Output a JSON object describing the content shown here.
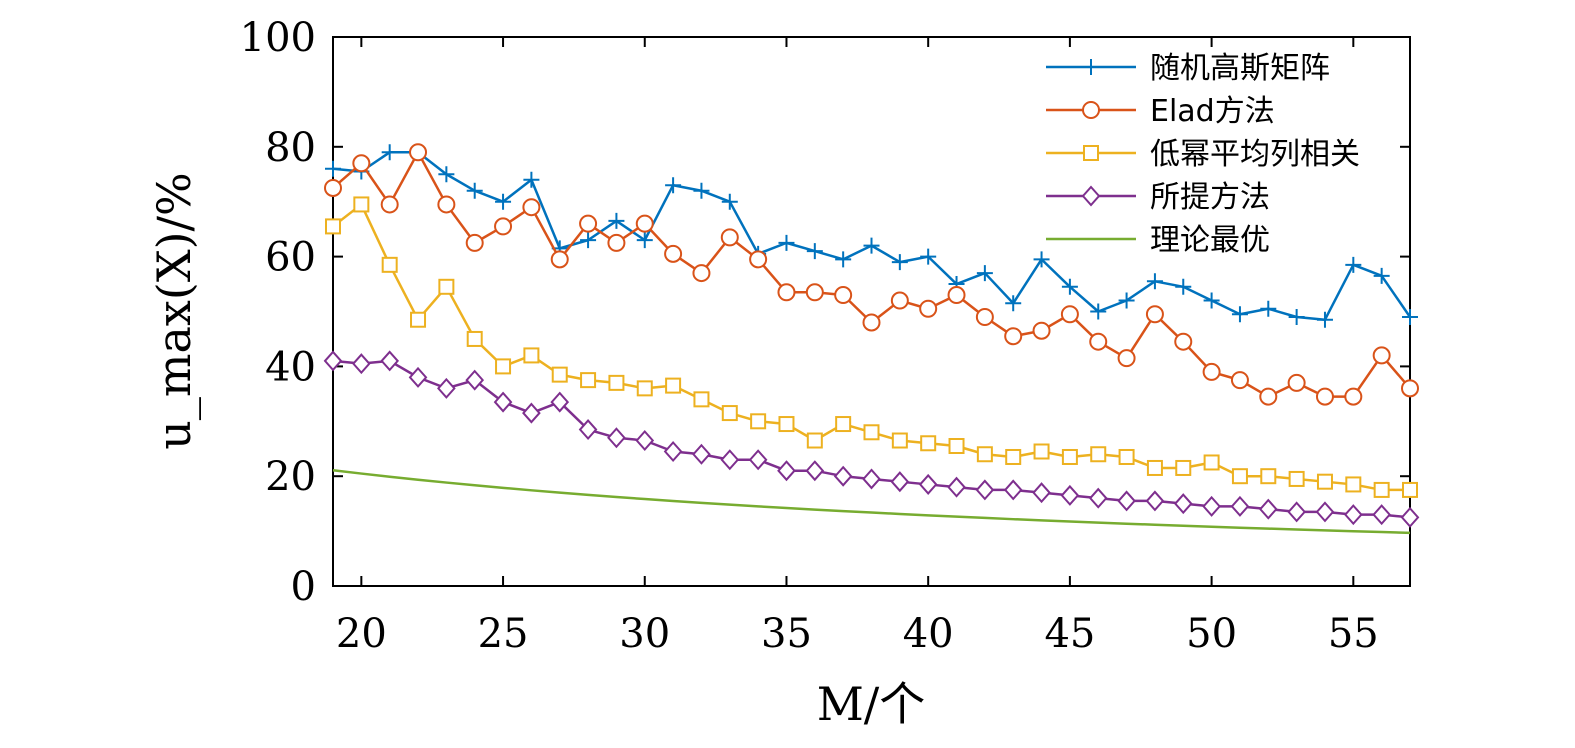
{
  "chart_data": {
    "type": "line",
    "xlabel": "M/个",
    "ylabel": "u_max(X)/%",
    "xlim": [
      19,
      57
    ],
    "ylim": [
      0,
      100
    ],
    "xticks": [
      20,
      25,
      30,
      35,
      40,
      45,
      50,
      55
    ],
    "yticks": [
      0,
      20,
      40,
      60,
      80,
      100
    ],
    "grid": false,
    "legend_position": "top-right",
    "x": [
      19,
      20,
      21,
      22,
      23,
      24,
      25,
      26,
      27,
      28,
      29,
      30,
      31,
      32,
      33,
      34,
      35,
      36,
      37,
      38,
      39,
      40,
      41,
      42,
      43,
      44,
      45,
      46,
      47,
      48,
      49,
      50,
      51,
      52,
      53,
      54,
      55,
      56,
      57
    ],
    "series": [
      {
        "name": "随机高斯矩阵",
        "color": "#0072BD",
        "marker": "plus",
        "values": [
          76,
          75.5,
          79,
          79,
          75,
          72,
          70,
          74,
          61.5,
          63,
          66.5,
          63,
          73,
          72,
          70,
          60.5,
          62.5,
          61,
          59.5,
          62,
          59,
          60,
          55,
          57,
          51.5,
          59.5,
          54.5,
          50,
          52,
          55.5,
          54.5,
          52,
          49.5,
          50.5,
          49,
          48.5,
          58.5,
          56.5,
          49
        ]
      },
      {
        "name": "Elad方法",
        "color": "#D95319",
        "marker": "circle",
        "values": [
          72.5,
          77,
          69.5,
          79,
          69.5,
          62.5,
          65.5,
          69,
          59.5,
          66,
          62.5,
          66,
          60.5,
          57,
          63.5,
          59.5,
          53.5,
          53.5,
          53,
          48,
          52,
          50.5,
          53,
          49,
          45.5,
          46.5,
          49.5,
          44.5,
          41.5,
          49.5,
          44.5,
          39,
          37.5,
          34.5,
          37,
          34.5,
          34.5,
          42,
          36
        ]
      },
      {
        "name": "低幂平均列相关",
        "color": "#EDB120",
        "marker": "square",
        "values": [
          65.5,
          69.5,
          58.5,
          48.5,
          54.5,
          45,
          40,
          42,
          38.5,
          37.5,
          37,
          36,
          36.5,
          34,
          31.5,
          30,
          29.5,
          26.5,
          29.5,
          28,
          26.5,
          26,
          25.5,
          24,
          23.5,
          24.5,
          23.5,
          24,
          23.5,
          21.5,
          21.5,
          22.5,
          20,
          20,
          19.5,
          19,
          18.5,
          17.5,
          17.5
        ]
      },
      {
        "name": "所提方法",
        "color": "#7E2F8E",
        "marker": "diamond",
        "values": [
          41,
          40.5,
          41,
          38,
          36,
          37.5,
          33.5,
          31.5,
          33.5,
          28.5,
          27,
          26.5,
          24.5,
          24,
          23,
          23,
          21,
          21,
          20,
          19.5,
          19,
          18.5,
          18,
          17.5,
          17.5,
          17,
          16.5,
          16,
          15.5,
          15.5,
          15,
          14.5,
          14.5,
          14,
          13.5,
          13.5,
          13,
          13,
          12.5
        ]
      },
      {
        "name": "理论最优",
        "color": "#77AC30",
        "marker": "none",
        "values": [
          21.09,
          20.48,
          19.9,
          19.36,
          18.84,
          18.35,
          17.88,
          17.43,
          17.0,
          16.6,
          16.21,
          15.84,
          15.49,
          15.15,
          14.82,
          14.51,
          14.21,
          13.92,
          13.64,
          13.38,
          13.12,
          12.87,
          12.63,
          12.4,
          12.17,
          11.96,
          11.75,
          11.54,
          11.35,
          11.16,
          10.97,
          10.79,
          10.62,
          10.45,
          10.29,
          10.13,
          9.98,
          9.83,
          9.68
        ]
      }
    ]
  }
}
